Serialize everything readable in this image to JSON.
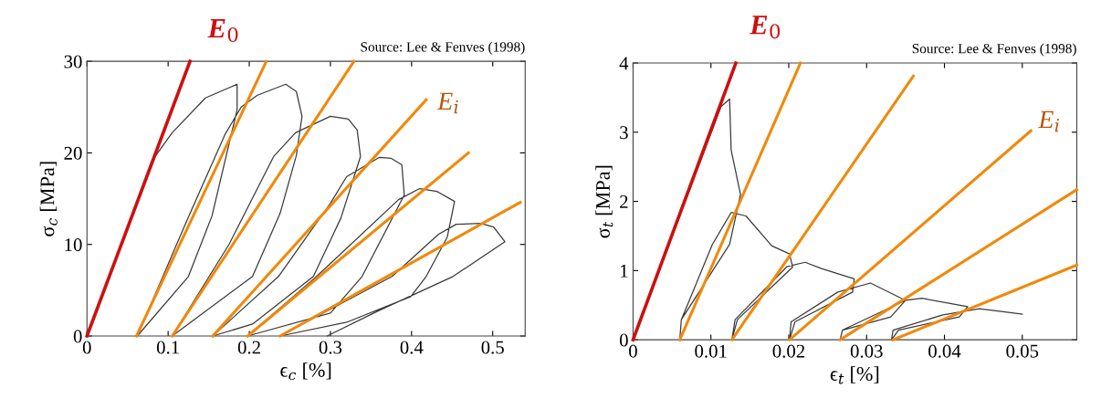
{
  "chart_data": [
    {
      "type": "line",
      "xlabel": "ϵ$_{c}$ [%]",
      "ylabel": "σ$_{c}$ [MPa]",
      "xlim": [
        0,
        0.54
      ],
      "ylim": [
        0,
        30
      ],
      "xticks": [
        0,
        0.1,
        0.2,
        0.3,
        0.4,
        0.5
      ],
      "yticks": [
        0,
        10,
        20,
        30
      ],
      "grid": false,
      "legend": false,
      "annotations": [
        "Source: Lee & Fenves (1998)"
      ],
      "series": [
        {
          "name": "E$_{0}$",
          "color": "#cc1010",
          "x": [
            0,
            0.127
          ],
          "values": [
            0,
            30
          ]
        },
        {
          "color": "#f0890c",
          "x": [
            0.061,
            0.221
          ],
          "values": [
            0,
            30
          ]
        },
        {
          "color": "#f0890c",
          "x": [
            0.105,
            0.329
          ],
          "values": [
            0,
            30
          ]
        },
        {
          "name": "E$_{i}$",
          "color": "#f0890c",
          "x": [
            0.155,
            0.418
          ],
          "values": [
            0,
            25.8
          ]
        },
        {
          "color": "#f0890c",
          "x": [
            0.198,
            0.47
          ],
          "values": [
            0,
            20.0
          ]
        },
        {
          "color": "#f0890c",
          "x": [
            0.238,
            0.534
          ],
          "values": [
            0,
            14.6
          ]
        },
        {
          "color": "#3a3a3a",
          "x": [
            0,
            0.084,
            0.105,
            0.146,
            0.185,
            0.185,
            0.154,
            0.125,
            0.062,
            0.125,
            0.17,
            0.19,
            0.21,
            0.245,
            0.258,
            0.265,
            0.258,
            0.238,
            0.204,
            0.105,
            0.175,
            0.23,
            0.257,
            0.3,
            0.322,
            0.333,
            0.337,
            0.313,
            0.279,
            0.204,
            0.155,
            0.236,
            0.3,
            0.32,
            0.36,
            0.375,
            0.388,
            0.391,
            0.339,
            0.3,
            0.198,
            0.283,
            0.384,
            0.41,
            0.431,
            0.453,
            0.444,
            0.418,
            0.399,
            0.32,
            0.238,
            0.376,
            0.433,
            0.455,
            0.485,
            0.501,
            0.515,
            0.451,
            0.358,
            0.296
          ],
          "values": [
            0,
            19.6,
            22.2,
            26.0,
            27.5,
            24.7,
            13.1,
            6.5,
            0,
            13.0,
            22.0,
            25.0,
            26.3,
            27.5,
            26.7,
            24.0,
            19.7,
            13.4,
            6.5,
            0,
            10.0,
            19.6,
            22.2,
            24.0,
            23.7,
            22.5,
            19.6,
            12.9,
            6.5,
            1.3,
            0,
            6.5,
            14.5,
            17.4,
            19.5,
            19.4,
            18.7,
            15.4,
            6.5,
            2.5,
            0,
            6.5,
            14.9,
            16.1,
            15.8,
            14.7,
            10.8,
            6.5,
            4.3,
            1.5,
            0,
            6.5,
            11.1,
            12.2,
            12.3,
            11.9,
            10.3,
            6.5,
            2.7,
            0
          ]
        }
      ]
    },
    {
      "type": "line",
      "xlabel": "ϵ$_{t}$ [%]",
      "ylabel": "σ$_{t}$ [MPa]",
      "xlim": [
        0,
        0.057
      ],
      "ylim": [
        0,
        4
      ],
      "xticks": [
        0,
        0.01,
        0.02,
        0.03,
        0.04,
        0.05
      ],
      "yticks": [
        0,
        1,
        2,
        3,
        4
      ],
      "grid": false,
      "legend": false,
      "annotations": [
        "Source: Lee & Fenves (1998)"
      ],
      "series": [
        {
          "name": "E$_{0}$",
          "color": "#cc1010",
          "x": [
            0,
            0.0132
          ],
          "values": [
            0,
            4
          ]
        },
        {
          "color": "#f0890c",
          "x": [
            0.006,
            0.0215
          ],
          "values": [
            0,
            4
          ]
        },
        {
          "color": "#f0890c",
          "x": [
            0.0127,
            0.036
          ],
          "values": [
            0,
            3.81
          ]
        },
        {
          "name": "E$_{i}$",
          "color": "#f0890c",
          "x": [
            0.0201,
            0.0511
          ],
          "values": [
            0,
            3.02
          ]
        },
        {
          "color": "#f0890c",
          "x": [
            0.0266,
            0.057
          ],
          "values": [
            0,
            2.17
          ]
        },
        {
          "color": "#f0890c",
          "x": [
            0.0334,
            0.057
          ],
          "values": [
            0,
            1.08
          ]
        },
        {
          "color": "#3a3a3a",
          "x": [
            0,
            0.0113,
            0.0124,
            0.0126,
            0.0138,
            0.0124,
            0.0062,
            0.006,
            0.0062,
            0.0102,
            0.0126,
            0.0145,
            0.0178,
            0.0201,
            0.0205,
            0.0134,
            0.0127,
            0.0131,
            0.0198,
            0.0221,
            0.0242,
            0.0284,
            0.0282,
            0.0208,
            0.0201,
            0.0203,
            0.0263,
            0.0305,
            0.035,
            0.0331,
            0.0269,
            0.0266,
            0.0269,
            0.035,
            0.0371,
            0.043,
            0.0419,
            0.0341,
            0.0332,
            0.0334,
            0.0398,
            0.0445,
            0.05
          ],
          "values": [
            0,
            3.37,
            3.48,
            2.74,
            2.1,
            1.38,
            0.29,
            0,
            0.29,
            1.38,
            1.84,
            1.79,
            1.36,
            1.24,
            1.05,
            0.29,
            0,
            0.29,
            1.06,
            1.12,
            1.03,
            0.88,
            0.69,
            0.26,
            0,
            0.26,
            0.69,
            0.82,
            0.57,
            0.33,
            0.14,
            0,
            0.14,
            0.57,
            0.6,
            0.48,
            0.33,
            0.14,
            0,
            0.14,
            0.36,
            0.45,
            0.37
          ]
        }
      ]
    }
  ]
}
